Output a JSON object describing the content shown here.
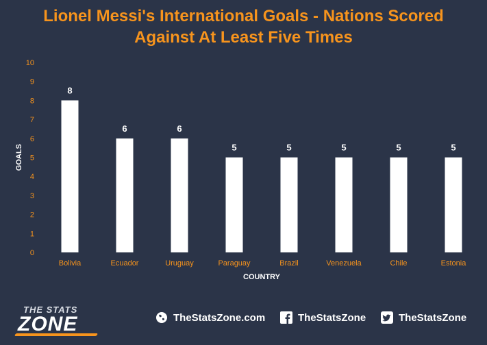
{
  "chart_data": {
    "type": "bar",
    "title_lines": [
      "Lionel Messi's International Goals - Nations Scored",
      "Against At Least Five Times"
    ],
    "xlabel": "COUNTRY",
    "ylabel": "GOALS",
    "categories": [
      "Bolivia",
      "Ecuador",
      "Uruguay",
      "Paraguay",
      "Brazil",
      "Venezuela",
      "Chile",
      "Estonia"
    ],
    "values": [
      8,
      6,
      6,
      5,
      5,
      5,
      5,
      5
    ],
    "ylim": [
      0,
      10
    ],
    "yticks": [
      0,
      1,
      2,
      3,
      4,
      5,
      6,
      7,
      8,
      9,
      10
    ],
    "grid": false,
    "data_labels": true
  },
  "colors": {
    "background": "#2b3448",
    "title": "#f7941d",
    "bars": "#ffffff",
    "tick_labels": "#f7941d",
    "axis_titles": "#ffffff"
  },
  "footer": {
    "logo_top": "THE STATS",
    "logo_bottom": "ZONE",
    "links": [
      {
        "icon": "globe-icon",
        "label": "TheStatsZone.com"
      },
      {
        "icon": "facebook-icon",
        "label": "TheStatsZone"
      },
      {
        "icon": "twitter-icon",
        "label": "TheStatsZone"
      }
    ]
  }
}
